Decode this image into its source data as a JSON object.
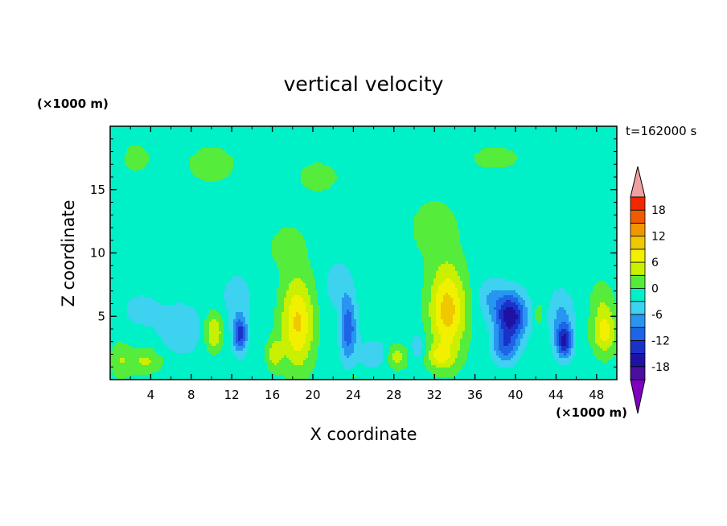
{
  "chart_data": {
    "type": "heatmap",
    "title": "vertical velocity",
    "xlabel": "X coordinate",
    "ylabel": "Z coordinate",
    "x_unit": "(×1000 m)",
    "y_unit": "(×1000 m)",
    "time_label": "t=162000 s",
    "xlim": [
      0,
      50
    ],
    "ylim": [
      0,
      20
    ],
    "x_ticks": [
      4,
      8,
      12,
      16,
      20,
      24,
      28,
      32,
      36,
      40,
      44,
      48
    ],
    "y_ticks": [
      5,
      10,
      15
    ],
    "colorbar": {
      "levels": [
        -21,
        -18,
        -15,
        -12,
        -9,
        -6,
        -3,
        0,
        3,
        6,
        9,
        12,
        15,
        18,
        21
      ],
      "tick_labels": [
        "18",
        "12",
        "6",
        "0",
        "-6",
        "-12",
        "-18"
      ],
      "tick_values": [
        18,
        12,
        6,
        0,
        -6,
        -12,
        -18
      ],
      "colors": [
        "#7f00bf",
        "#4b0f9e",
        "#1e12a4",
        "#1a32c8",
        "#1e64e6",
        "#2896f0",
        "#3cd2f0",
        "#00f0c8",
        "#55ec3c",
        "#c8f000",
        "#f0f000",
        "#f0c800",
        "#f09600",
        "#f05a00",
        "#f02800",
        "#f0a0a0"
      ],
      "extend": "both"
    },
    "features": [
      {
        "x": 3.5,
        "z": 1.5,
        "amp": 5,
        "sx": 1.7,
        "sz": 1.0
      },
      {
        "x": 1.0,
        "z": 1.5,
        "amp": 4,
        "sx": 1.0,
        "sz": 1.5
      },
      {
        "x": 7.0,
        "z": 4.0,
        "amp": -4,
        "sx": 2.2,
        "sz": 2.0
      },
      {
        "x": 3.0,
        "z": 5.5,
        "amp": -2.5,
        "sx": 2.0,
        "sz": 1.5
      },
      {
        "x": 10.2,
        "z": 3.8,
        "amp": 8,
        "sx": 0.9,
        "sz": 1.5
      },
      {
        "x": 12.8,
        "z": 3.6,
        "amp": -12,
        "sx": 0.7,
        "sz": 1.4
      },
      {
        "x": 12.5,
        "z": 6.5,
        "amp": -3,
        "sx": 1.5,
        "sz": 2.0
      },
      {
        "x": 18.5,
        "z": 4.5,
        "amp": 11,
        "sx": 1.6,
        "sz": 3.6
      },
      {
        "x": 16.2,
        "z": 2.0,
        "amp": 6,
        "sx": 0.8,
        "sz": 1.2
      },
      {
        "x": 17.5,
        "z": 10.5,
        "amp": 3,
        "sx": 1.8,
        "sz": 1.8
      },
      {
        "x": 23.5,
        "z": 4.0,
        "amp": -10,
        "sx": 0.8,
        "sz": 2.4
      },
      {
        "x": 22.5,
        "z": 7.5,
        "amp": -3.5,
        "sx": 1.3,
        "sz": 1.8
      },
      {
        "x": 26.0,
        "z": 2.0,
        "amp": -3.5,
        "sx": 1.5,
        "sz": 1.2
      },
      {
        "x": 28.3,
        "z": 1.8,
        "amp": 6,
        "sx": 1.0,
        "sz": 1.0
      },
      {
        "x": 30.5,
        "z": 2.5,
        "amp": -4,
        "sx": 0.8,
        "sz": 1.2
      },
      {
        "x": 33.3,
        "z": 5.5,
        "amp": 12,
        "sx": 1.8,
        "sz": 3.5
      },
      {
        "x": 32.5,
        "z": 1.8,
        "amp": 6,
        "sx": 1.5,
        "sz": 1.0
      },
      {
        "x": 32.0,
        "z": 12.0,
        "amp": 3,
        "sx": 2.5,
        "sz": 2.5
      },
      {
        "x": 39.5,
        "z": 5.0,
        "amp": -16,
        "sx": 1.5,
        "sz": 1.8
      },
      {
        "x": 39.0,
        "z": 2.5,
        "amp": -8,
        "sx": 1.2,
        "sz": 1.2
      },
      {
        "x": 37.5,
        "z": 6.5,
        "amp": -4,
        "sx": 1.3,
        "sz": 1.5
      },
      {
        "x": 42.3,
        "z": 5.2,
        "amp": 5,
        "sx": 0.4,
        "sz": 0.8
      },
      {
        "x": 44.8,
        "z": 3.0,
        "amp": -13,
        "sx": 0.8,
        "sz": 1.3
      },
      {
        "x": 44.5,
        "z": 5.0,
        "amp": -5,
        "sx": 1.2,
        "sz": 2.0
      },
      {
        "x": 48.8,
        "z": 3.8,
        "amp": 9,
        "sx": 1.2,
        "sz": 1.8
      },
      {
        "x": 48.5,
        "z": 6.5,
        "amp": 3,
        "sx": 1.2,
        "sz": 1.5
      },
      {
        "x": 24.0,
        "z": 0.3,
        "amp": 3,
        "sx": 0.4,
        "sz": 0.3
      },
      {
        "x": 10.0,
        "z": 17.0,
        "amp": 2,
        "sx": 4.0,
        "sz": 2.5
      },
      {
        "x": 38.0,
        "z": 17.5,
        "amp": 2,
        "sx": 4.0,
        "sz": 1.5
      },
      {
        "x": 20.5,
        "z": 16.0,
        "amp": 2.5,
        "sx": 2.5,
        "sz": 1.5
      },
      {
        "x": 2.5,
        "z": 17.5,
        "amp": 2,
        "sx": 2.0,
        "sz": 1.8
      }
    ]
  }
}
